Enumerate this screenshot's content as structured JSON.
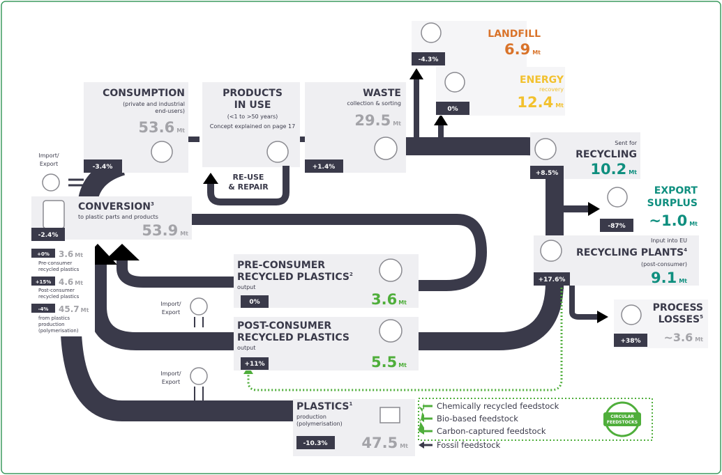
{
  "consumption": {
    "title": "CONSUMPTION",
    "subtitle": [
      "(private and industrial",
      "end-users)"
    ],
    "value": "53.6",
    "unit": "Mt",
    "change": "-3.4%"
  },
  "products_in_use": {
    "title": [
      "PRODUCTS",
      "IN USE"
    ],
    "subtitle": "(<1 to >50 years)",
    "note": "Concept explained on page 17"
  },
  "reuse": {
    "title": [
      "RE-USE",
      "& REPAIR"
    ]
  },
  "waste": {
    "title": "WASTE",
    "subtitle": "collection & sorting",
    "value": "29.5",
    "unit": "Mt",
    "change": "+1.4%"
  },
  "landfill": {
    "title": "LANDFILL",
    "value": "6.9",
    "unit": "Mt",
    "change": "-4.3%"
  },
  "energy": {
    "title": "ENERGY",
    "subtitle": "recovery",
    "value": "12.4",
    "unit": "Mt",
    "change": "0%"
  },
  "recycling": {
    "pre": "Sent for",
    "title": "RECYCLING",
    "value": "10.2",
    "unit": "Mt",
    "change": "+8.5%"
  },
  "export_surplus": {
    "title": [
      "EXPORT",
      "SURPLUS"
    ],
    "value": "~1.0",
    "unit": "Mt",
    "change": "-87%"
  },
  "recycling_plants": {
    "pre": "Input into EU",
    "title": "RECYCLING PLANTS",
    "footnote": "4",
    "subtitle": "(post-consumer)",
    "value": "9.1",
    "unit": "Mt",
    "change": "+17.6%"
  },
  "process_losses": {
    "title": [
      "PROCESS",
      "LOSSES"
    ],
    "footnote": "5",
    "value": "~3.6",
    "unit": "Mt",
    "change": "+38%"
  },
  "conversion": {
    "title": "CONVERSION",
    "footnote": "3",
    "subtitle": "to plastic parts and products",
    "value": "53.9",
    "unit": "Mt",
    "change": "-2.4%",
    "inputs": [
      {
        "change": "+0%",
        "value": "3.6",
        "unit": "Mt",
        "label": [
          "Pre-consumer",
          "recycled plastics"
        ]
      },
      {
        "change": "+15%",
        "value": "4.6",
        "unit": "Mt",
        "label": [
          "Post-consumer",
          "recycled plastics"
        ]
      },
      {
        "change": "-4%",
        "value": "45.7",
        "unit": "Mt",
        "label": [
          "from plastics",
          "production",
          "(polymerisation)"
        ]
      }
    ]
  },
  "import_export": [
    [
      "Import/",
      "Export"
    ],
    [
      "Import/",
      "Export"
    ],
    [
      "Import/",
      "Export"
    ]
  ],
  "pre_consumer": {
    "title": [
      "PRE-CONSUMER",
      "RECYCLED PLASTICS"
    ],
    "footnote": "2",
    "subtitle": "output",
    "value": "3.6",
    "unit": "Mt",
    "change": "0%"
  },
  "post_consumer": {
    "title": [
      "POST-CONSUMER",
      "RECYCLED PLASTICS"
    ],
    "subtitle": "output",
    "value": "5.5",
    "unit": "Mt",
    "change": "+11%"
  },
  "plastics": {
    "title": "PLASTICS",
    "footnote": "1",
    "subtitle": [
      "production",
      "(polymerisation)"
    ],
    "value": "47.5",
    "unit": "Mt",
    "change": "-10.3%"
  },
  "feedstocks": {
    "items": [
      "Chemically recycled feedstock",
      "Bio-based feedstock",
      "Carbon-captured feedstock",
      "Fossil feedstock"
    ],
    "badge": [
      "CIRCULAR",
      "FEEDSTOCKS"
    ]
  }
}
